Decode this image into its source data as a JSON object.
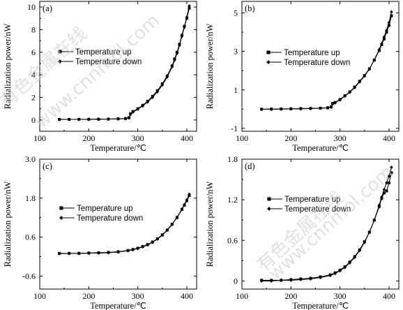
{
  "chart_data": [
    {
      "type": "line",
      "panel": "(a)",
      "xlabel": "Temperature/℃",
      "ylabel": "Radialization power/nW",
      "xlim": [
        100,
        420
      ],
      "ylim": [
        -1,
        10.5
      ],
      "xticks": [
        100,
        200,
        300,
        400
      ],
      "yticks": [
        0,
        2,
        4,
        6,
        8,
        10
      ],
      "legend_position": "center",
      "series": [
        {
          "name": "Temperature up",
          "marker": "square",
          "x": [
            140,
            160,
            180,
            200,
            220,
            240,
            260,
            275,
            282,
            285,
            290,
            300,
            310,
            320,
            330,
            340,
            350,
            360,
            370,
            375,
            380,
            385,
            390,
            395,
            400,
            405
          ],
          "y": [
            0.05,
            0.05,
            0.06,
            0.06,
            0.07,
            0.08,
            0.1,
            0.13,
            0.2,
            0.55,
            0.75,
            1.0,
            1.3,
            1.65,
            2.1,
            2.6,
            3.2,
            3.9,
            4.8,
            5.4,
            6.0,
            6.7,
            7.5,
            8.3,
            9.0,
            9.9
          ]
        },
        {
          "name": "Temperature down",
          "marker": "diamond",
          "x": [
            140,
            160,
            180,
            200,
            220,
            240,
            260,
            275,
            282,
            285,
            290,
            300,
            310,
            320,
            330,
            340,
            350,
            360,
            370,
            375,
            380,
            385,
            390,
            395,
            400,
            405
          ],
          "y": [
            0.04,
            0.05,
            0.05,
            0.06,
            0.07,
            0.08,
            0.1,
            0.12,
            0.18,
            0.5,
            0.7,
            0.95,
            1.25,
            1.6,
            2.0,
            2.5,
            3.1,
            3.8,
            4.7,
            5.3,
            5.9,
            6.6,
            7.4,
            8.2,
            9.1,
            10.1
          ]
        }
      ]
    },
    {
      "type": "line",
      "panel": "(b)",
      "xlabel": "Temperature/℃",
      "ylabel": "Radialization power/nW",
      "xlim": [
        100,
        420
      ],
      "ylim": [
        -1.15,
        5.6
      ],
      "xticks": [
        100,
        200,
        300,
        400
      ],
      "yticks": [
        -1,
        1,
        3,
        5
      ],
      "legend_position": "top-center",
      "series": [
        {
          "name": "Temperature up",
          "marker": "square",
          "x": [
            140,
            160,
            180,
            200,
            220,
            240,
            260,
            275,
            282,
            285,
            290,
            300,
            310,
            320,
            330,
            340,
            350,
            360,
            370,
            380,
            385,
            390,
            395,
            400,
            405
          ],
          "y": [
            0.0,
            0.0,
            0.01,
            0.02,
            0.03,
            0.04,
            0.05,
            0.07,
            0.12,
            0.3,
            0.35,
            0.5,
            0.7,
            0.9,
            1.15,
            1.45,
            1.75,
            2.1,
            2.55,
            3.05,
            3.35,
            3.65,
            4.0,
            4.35,
            4.85
          ]
        },
        {
          "name": "Temperature down",
          "marker": "diamond",
          "x": [
            140,
            160,
            180,
            200,
            220,
            240,
            260,
            275,
            282,
            285,
            290,
            300,
            310,
            320,
            330,
            340,
            350,
            360,
            370,
            380,
            385,
            390,
            395,
            400,
            405
          ],
          "y": [
            -0.01,
            0.0,
            0.0,
            0.01,
            0.02,
            0.03,
            0.05,
            0.07,
            0.1,
            0.28,
            0.33,
            0.48,
            0.68,
            0.88,
            1.12,
            1.42,
            1.72,
            2.08,
            2.55,
            3.1,
            3.4,
            3.75,
            4.1,
            4.5,
            5.05
          ]
        }
      ]
    },
    {
      "type": "line",
      "panel": "(c)",
      "xlabel": "Temperature/℃",
      "ylabel": "Radialization power/nW",
      "xlim": [
        100,
        420
      ],
      "ylim": [
        -1.0,
        3.0
      ],
      "xticks": [
        100,
        200,
        300,
        400
      ],
      "yticks": [
        -0.6,
        0.6,
        1.8,
        3.0
      ],
      "ytick_labels": [
        "-0.6",
        "0.6",
        "1.8",
        "3.0"
      ],
      "legend_position": "left",
      "series": [
        {
          "name": "Temperature up",
          "marker": "square",
          "x": [
            140,
            160,
            180,
            200,
            220,
            240,
            260,
            280,
            290,
            300,
            310,
            320,
            330,
            340,
            350,
            360,
            370,
            380,
            390,
            395,
            400,
            405
          ],
          "y": [
            0.1,
            0.1,
            0.1,
            0.11,
            0.12,
            0.13,
            0.15,
            0.19,
            0.22,
            0.26,
            0.31,
            0.37,
            0.45,
            0.55,
            0.67,
            0.82,
            1.0,
            1.2,
            1.45,
            1.58,
            1.72,
            1.88
          ]
        },
        {
          "name": "Temperature down",
          "marker": "diamond",
          "x": [
            140,
            160,
            180,
            200,
            220,
            240,
            260,
            280,
            290,
            300,
            310,
            320,
            330,
            340,
            350,
            360,
            370,
            380,
            390,
            395,
            400,
            405
          ],
          "y": [
            0.09,
            0.1,
            0.1,
            0.11,
            0.11,
            0.12,
            0.14,
            0.18,
            0.21,
            0.25,
            0.3,
            0.36,
            0.44,
            0.54,
            0.66,
            0.81,
            0.99,
            1.21,
            1.46,
            1.6,
            1.75,
            1.92
          ]
        }
      ]
    },
    {
      "type": "line",
      "panel": "(d)",
      "xlabel": "Temperature/℃",
      "ylabel": "Radialization power/nW",
      "xlim": [
        100,
        420
      ],
      "ylim": [
        -0.12,
        1.8
      ],
      "xticks": [
        100,
        200,
        300,
        400
      ],
      "yticks": [
        0,
        0.6,
        1.2,
        1.8
      ],
      "ytick_labels": [
        "0",
        "0.6",
        "1.2",
        "1.8"
      ],
      "legend_position": "top-left",
      "series": [
        {
          "name": "Temperature up",
          "marker": "square",
          "x": [
            140,
            160,
            180,
            200,
            220,
            240,
            260,
            280,
            290,
            300,
            310,
            320,
            330,
            340,
            350,
            360,
            370,
            380,
            385,
            390,
            395,
            400,
            405
          ],
          "y": [
            0.01,
            0.01,
            0.01,
            0.02,
            0.03,
            0.04,
            0.06,
            0.09,
            0.12,
            0.16,
            0.21,
            0.28,
            0.36,
            0.46,
            0.58,
            0.72,
            0.9,
            1.1,
            1.22,
            1.3,
            1.33,
            1.45,
            1.6
          ]
        },
        {
          "name": "Temperature down",
          "marker": "diamond",
          "x": [
            140,
            160,
            180,
            200,
            220,
            240,
            260,
            280,
            290,
            300,
            310,
            320,
            330,
            340,
            350,
            360,
            370,
            380,
            385,
            390,
            395,
            400,
            405
          ],
          "y": [
            0.0,
            0.0,
            0.01,
            0.01,
            0.02,
            0.03,
            0.05,
            0.08,
            0.11,
            0.15,
            0.2,
            0.27,
            0.35,
            0.45,
            0.57,
            0.72,
            0.9,
            1.12,
            1.24,
            1.35,
            1.45,
            1.55,
            1.68
          ]
        }
      ]
    }
  ],
  "watermarks": [
    "有色金属在线",
    "www.cnnmol.com"
  ]
}
